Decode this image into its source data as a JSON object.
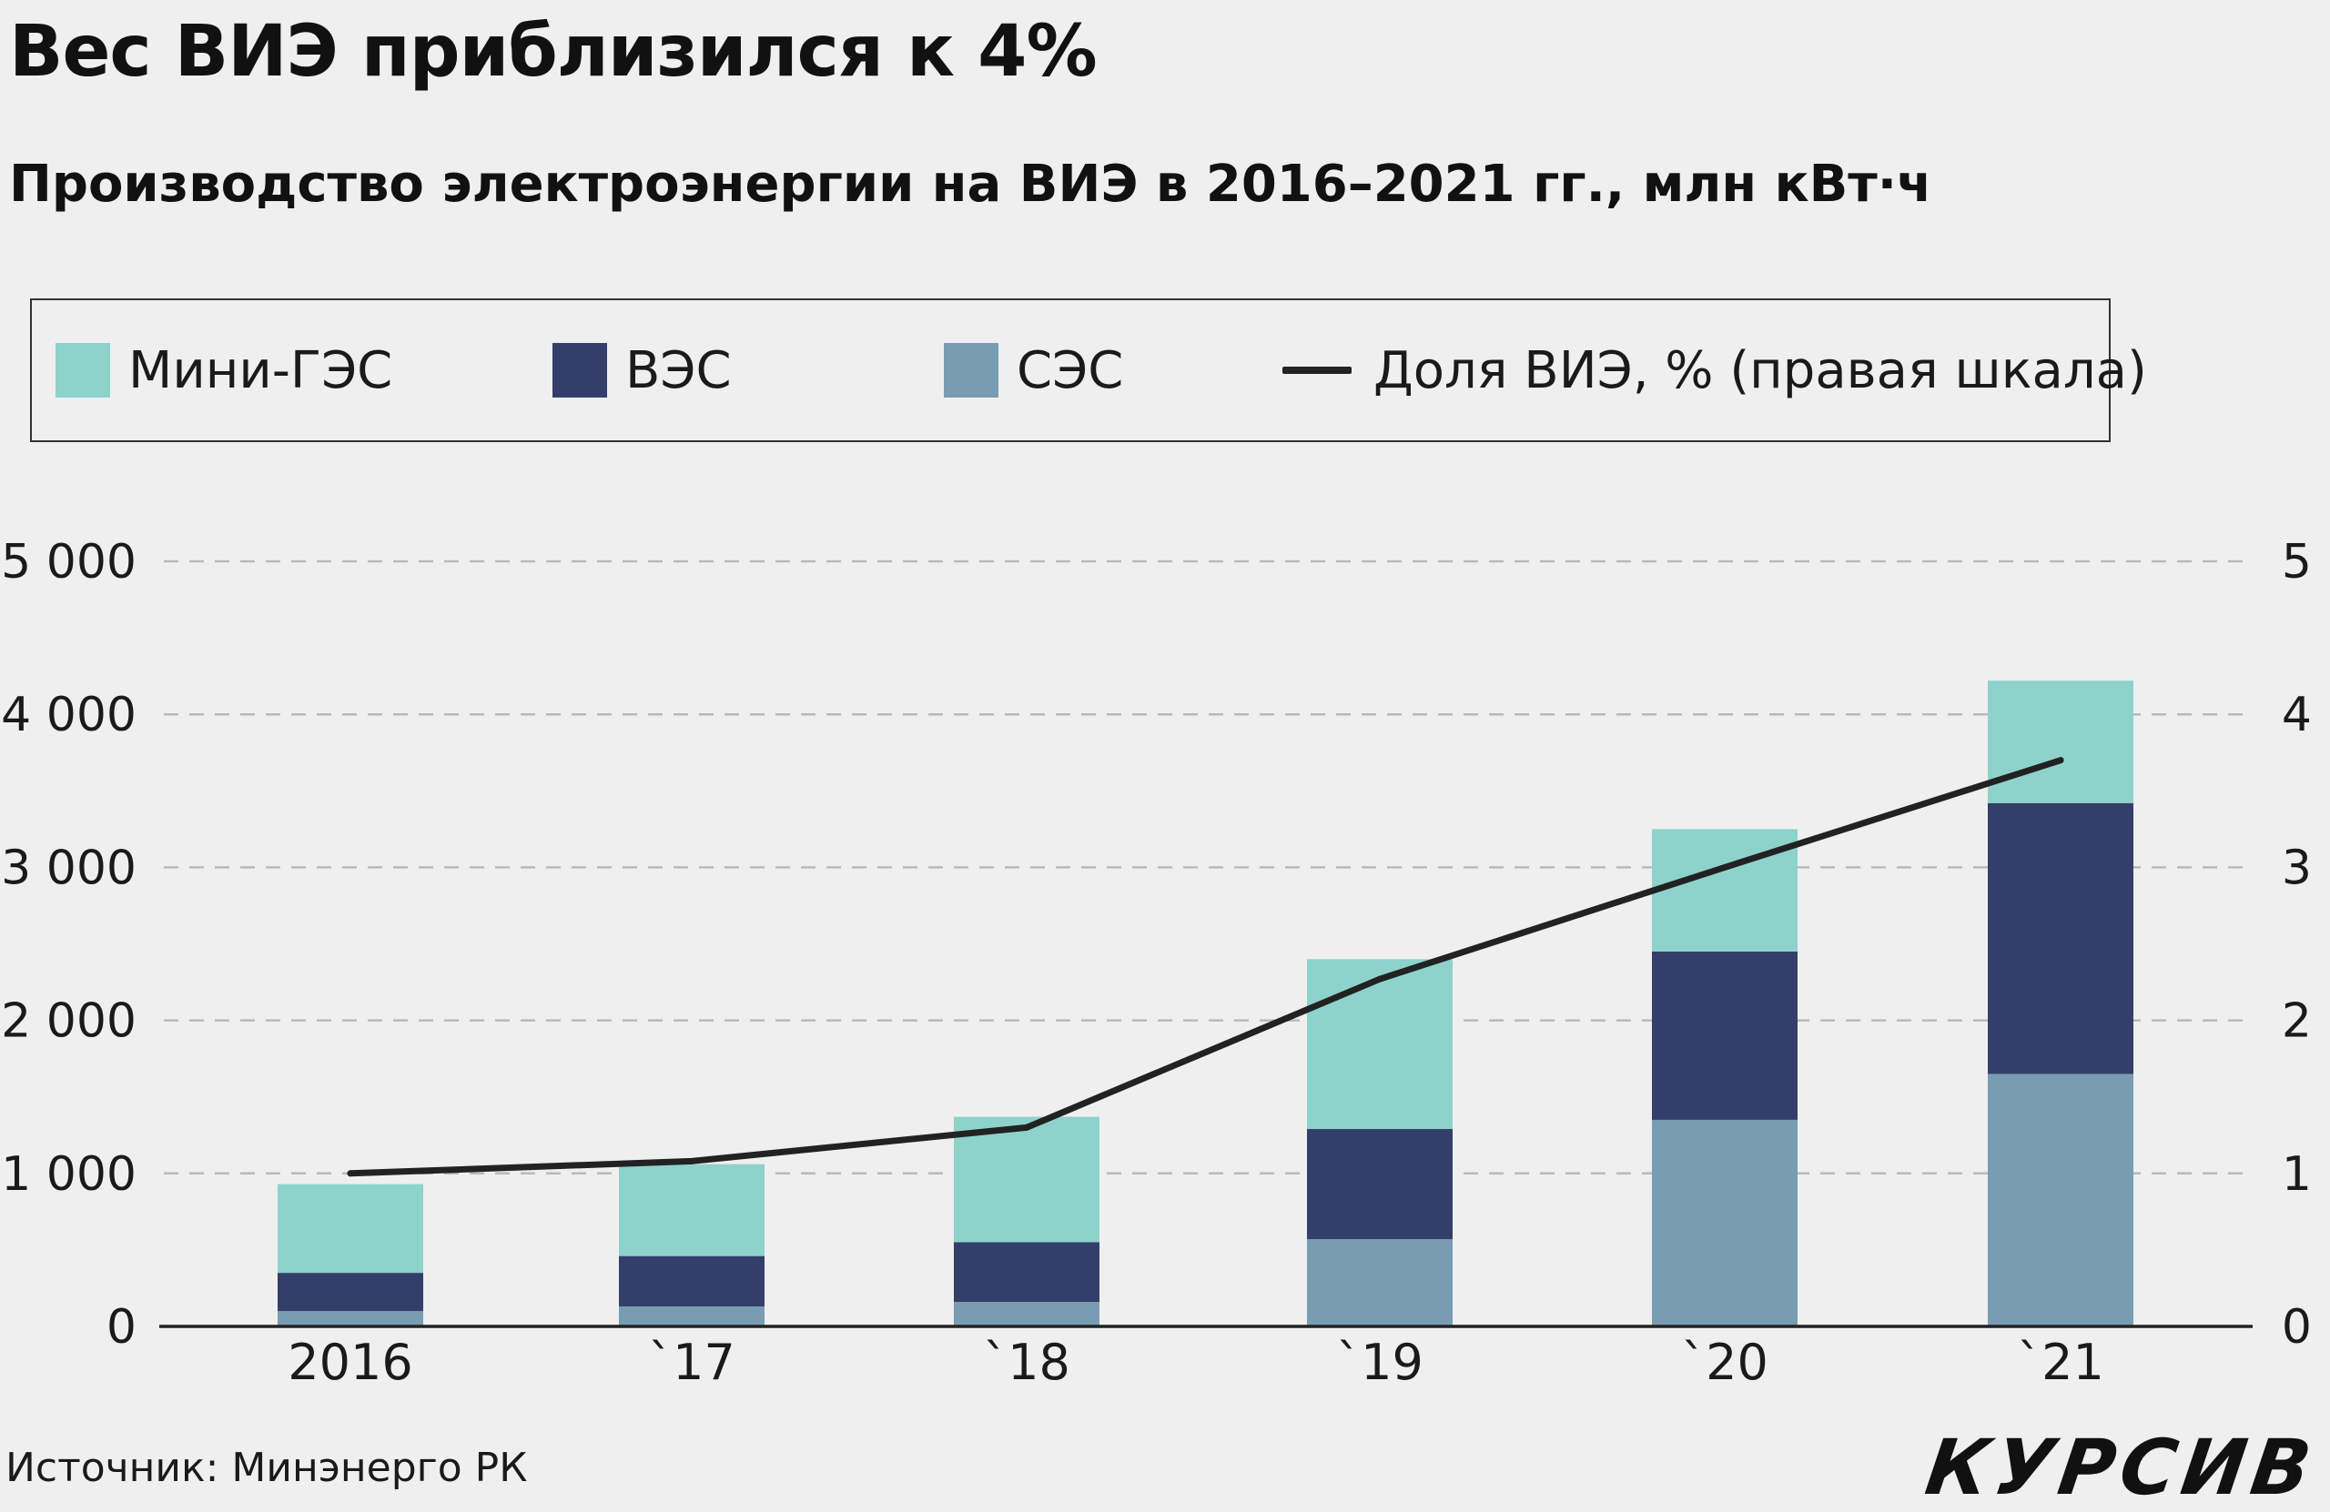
{
  "header": {
    "title": "Вес ВИЭ приблизился к 4%",
    "subtitle": "Производство электроэнергии на ВИЭ в 2016–2021 гг., млн кВт·ч"
  },
  "legend": {
    "items": [
      {
        "label": "Мини-ГЭС",
        "color": "#8dd3cb"
      },
      {
        "label": "ВЭС",
        "color": "#333f6a"
      },
      {
        "label": "СЭС",
        "color": "#789db2"
      },
      {
        "label": "Доля ВИЭ, % (правая шкала)",
        "color": "#222222"
      }
    ]
  },
  "footer": {
    "source": "Источник: Минэнерго РК",
    "logo": "КУРСИВ"
  },
  "chart_data": {
    "type": "bar",
    "stacked": true,
    "categories": [
      "2016",
      "`17",
      "`18",
      "`19",
      "`20",
      "`21"
    ],
    "series": [
      {
        "name": "СЭС",
        "values": [
          100,
          130,
          160,
          570,
          1350,
          1650
        ],
        "color": "#789db2"
      },
      {
        "name": "ВЭС",
        "values": [
          250,
          330,
          390,
          720,
          1100,
          1770
        ],
        "color": "#333f6a"
      },
      {
        "name": "Мини-ГЭС",
        "values": [
          580,
          600,
          820,
          1110,
          800,
          800
        ],
        "color": "#8dd3cb"
      }
    ],
    "line_series": {
      "name": "Доля ВИЭ, % (правая шкала)",
      "values": [
        1.0,
        1.08,
        1.3,
        2.27,
        3.0,
        3.7
      ],
      "color": "#222222",
      "axis": "right"
    },
    "ylim": [
      0,
      5000
    ],
    "yticks": [
      0,
      1000,
      2000,
      3000,
      4000,
      5000
    ],
    "ytick_labels": [
      "0",
      "1 000",
      "2 000",
      "3 000",
      "4 000",
      "5 000"
    ],
    "y2lim": [
      0,
      5
    ],
    "y2ticks": [
      0,
      1,
      2,
      3,
      4,
      5
    ],
    "y2tick_labels": [
      "0",
      "1",
      "2",
      "3",
      "4",
      "5"
    ],
    "grid": "horizontal dashed"
  }
}
